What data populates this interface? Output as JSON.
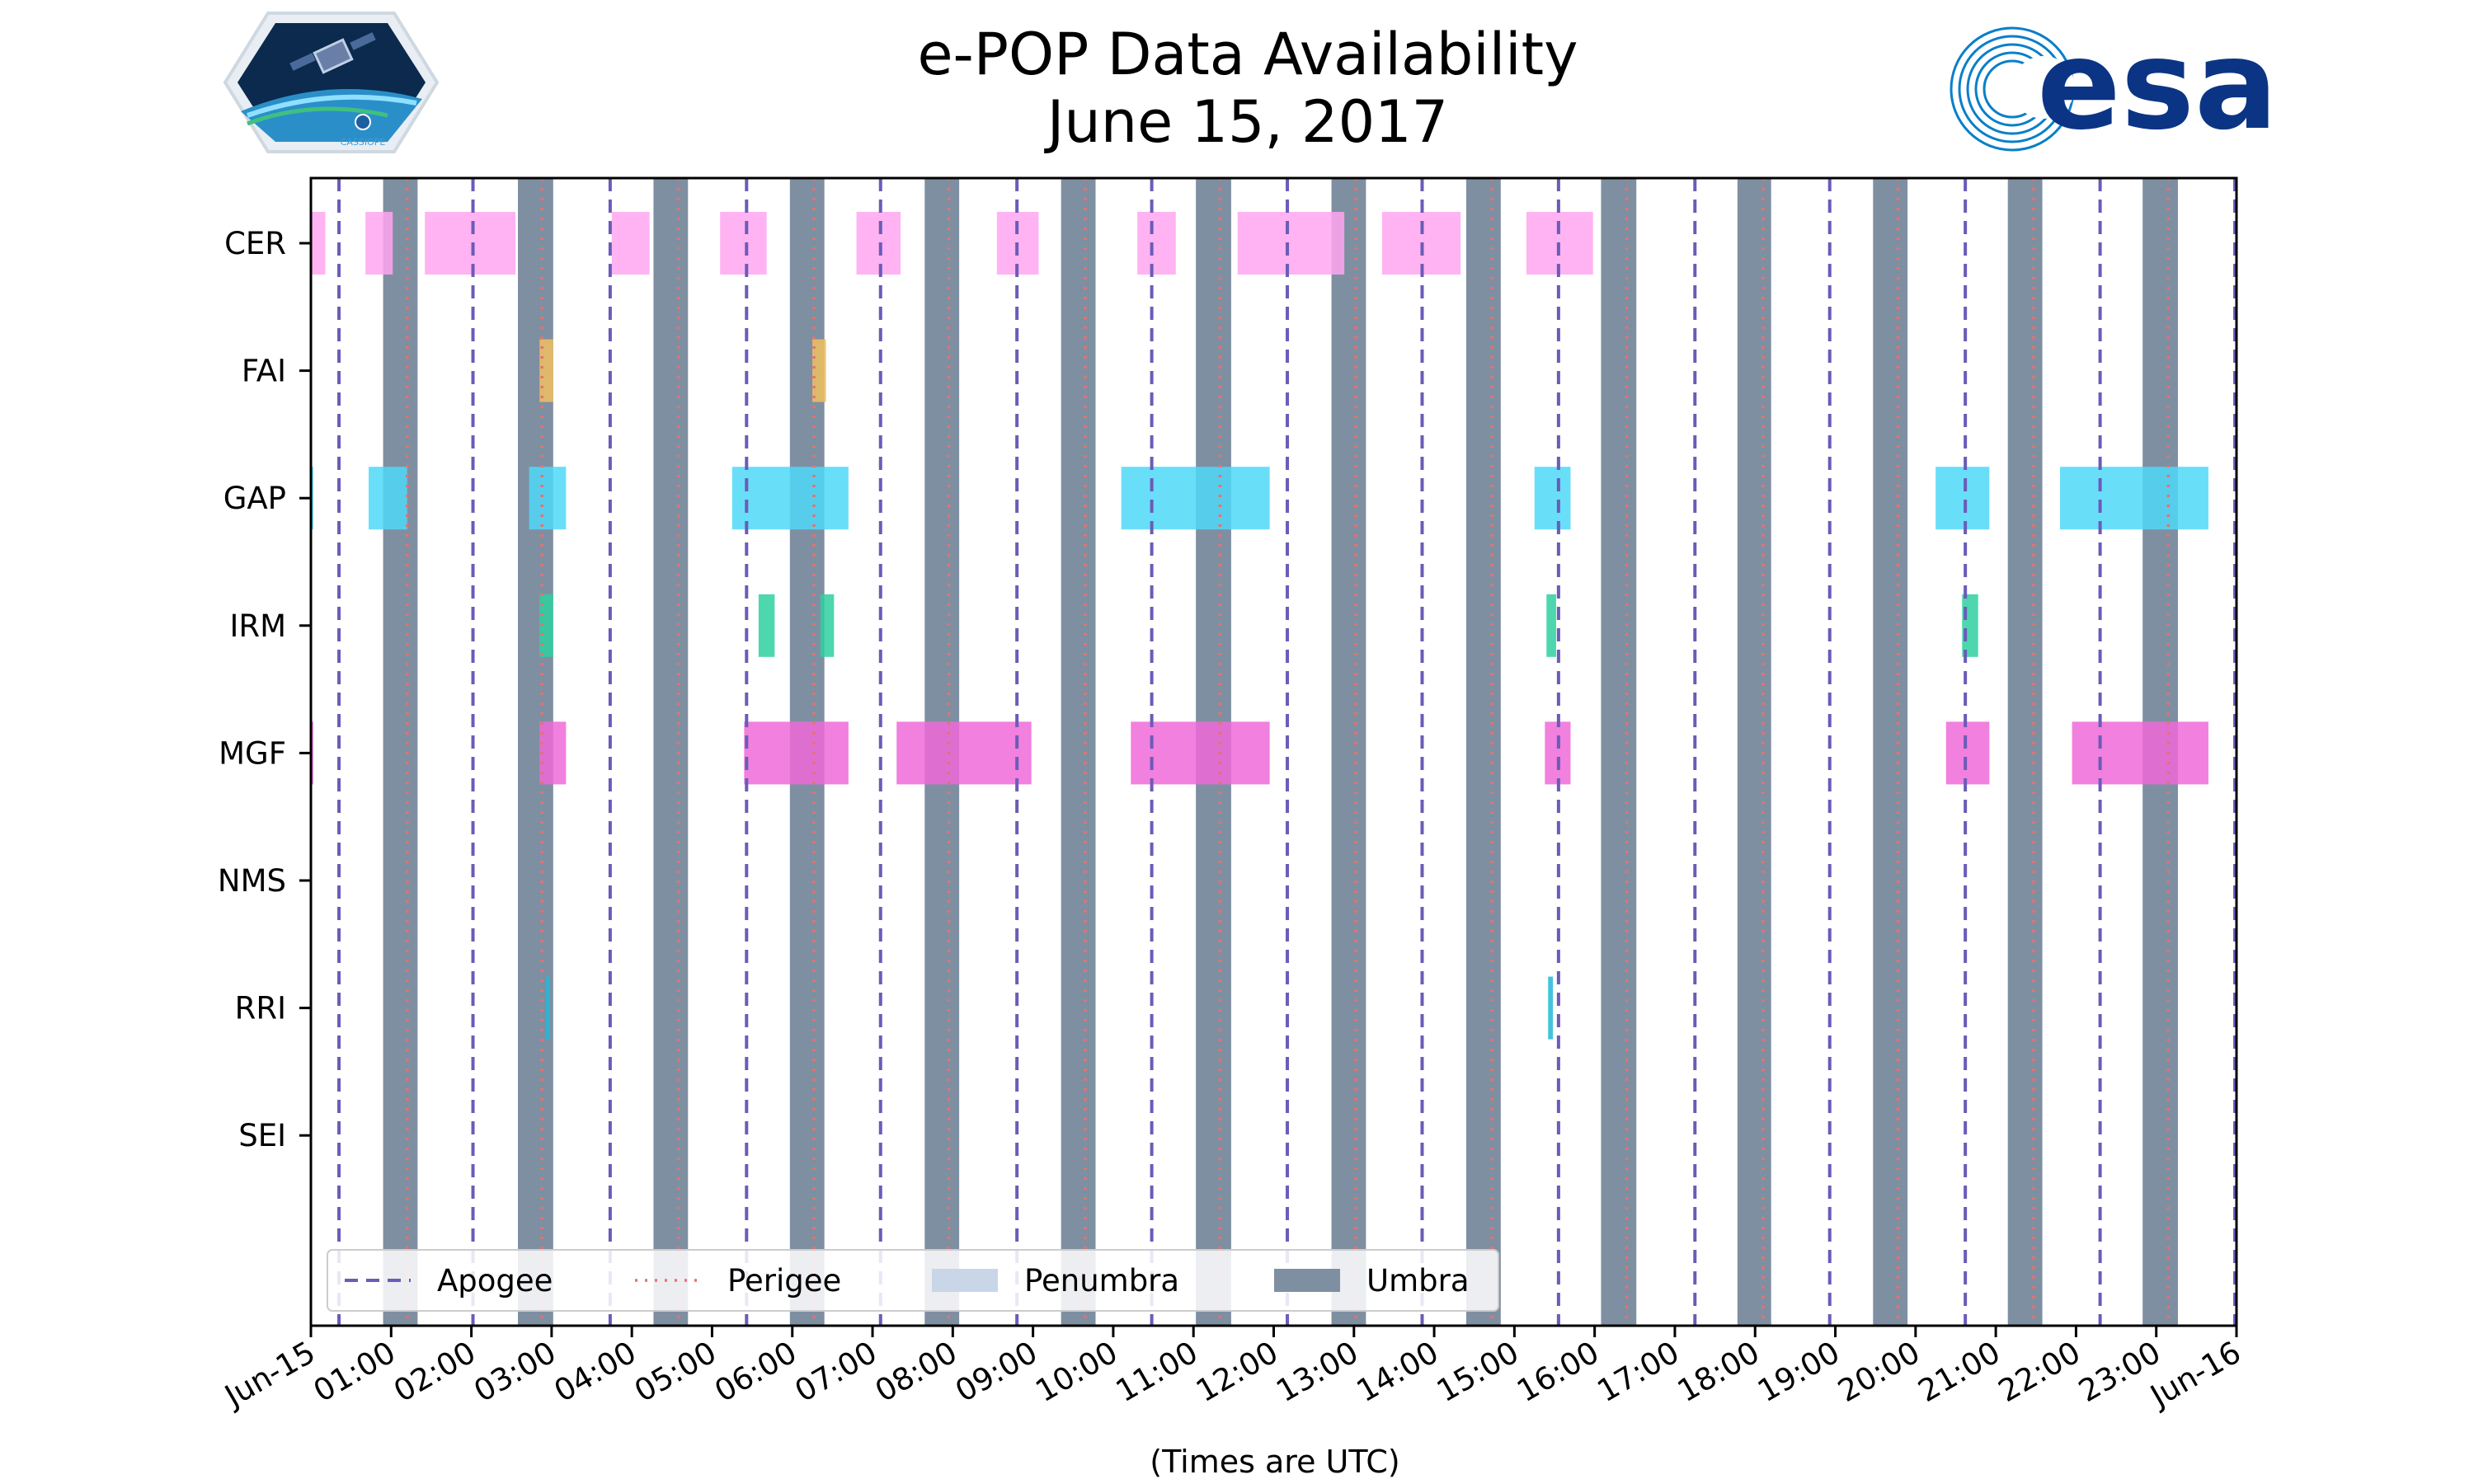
{
  "chart_data": {
    "type": "timeline",
    "title": "e-POP Data Availability",
    "subtitle": "June 15, 2017",
    "xlabel": "(Times are UTC)",
    "x_range_hours": [
      0,
      24
    ],
    "x_tick_labels": [
      "Jun-15",
      "01:00",
      "02:00",
      "03:00",
      "04:00",
      "05:00",
      "06:00",
      "07:00",
      "08:00",
      "09:00",
      "10:00",
      "11:00",
      "12:00",
      "13:00",
      "14:00",
      "15:00",
      "16:00",
      "17:00",
      "18:00",
      "19:00",
      "20:00",
      "21:00",
      "22:00",
      "23:00",
      "Jun-16"
    ],
    "instruments": [
      "CER",
      "FAI",
      "GAP",
      "IRM",
      "MGF",
      "NMS",
      "RRI",
      "SEI"
    ],
    "colors": {
      "CER": "#ffa6f0",
      "FAI": "#f0c060",
      "GAP": "#4fd8f8",
      "IRM": "#2fd0a0",
      "MGF": "#ee6ad8",
      "NMS": "#999999",
      "RRI": "#22b8d8",
      "SEI": "#999999",
      "apogee": "#6a5cb8",
      "perigee": "#e87070",
      "penumbra": "#c8d6e8",
      "umbra": "#7f8fa2"
    },
    "series": [
      {
        "name": "CER",
        "intervals_hours": [
          [
            0.0,
            0.18
          ],
          [
            0.68,
            1.02
          ],
          [
            1.42,
            2.55
          ],
          [
            3.75,
            4.22
          ],
          [
            5.1,
            5.68
          ],
          [
            6.8,
            7.35
          ],
          [
            8.55,
            9.07
          ],
          [
            10.3,
            10.78
          ],
          [
            11.55,
            12.88
          ],
          [
            13.35,
            14.33
          ],
          [
            15.15,
            15.98
          ]
        ]
      },
      {
        "name": "FAI",
        "intervals_hours": [
          [
            2.85,
            3.02
          ],
          [
            6.25,
            6.42
          ]
        ]
      },
      {
        "name": "GAP",
        "intervals_hours": [
          [
            0.0,
            0.03
          ],
          [
            0.72,
            1.2
          ],
          [
            2.72,
            3.18
          ],
          [
            5.25,
            6.7
          ],
          [
            10.1,
            11.95
          ],
          [
            15.25,
            15.7
          ],
          [
            20.25,
            20.92
          ],
          [
            21.8,
            23.65
          ]
        ]
      },
      {
        "name": "IRM",
        "intervals_hours": [
          [
            2.85,
            3.02
          ],
          [
            5.58,
            5.78
          ],
          [
            6.35,
            6.52
          ],
          [
            15.4,
            15.52
          ],
          [
            20.58,
            20.78
          ]
        ]
      },
      {
        "name": "MGF",
        "intervals_hours": [
          [
            0.0,
            0.03
          ],
          [
            2.85,
            3.18
          ],
          [
            5.4,
            6.7
          ],
          [
            7.3,
            8.98
          ],
          [
            10.22,
            11.95
          ],
          [
            15.38,
            15.7
          ],
          [
            20.38,
            20.92
          ],
          [
            21.95,
            23.65
          ]
        ]
      },
      {
        "name": "NMS",
        "intervals_hours": []
      },
      {
        "name": "RRI",
        "intervals_hours": [
          [
            2.92,
            2.98
          ],
          [
            15.42,
            15.48
          ]
        ]
      },
      {
        "name": "SEI",
        "intervals_hours": []
      }
    ],
    "umbra_hours": [
      [
        0.9,
        1.33
      ],
      [
        2.58,
        3.02
      ],
      [
        4.27,
        4.7
      ],
      [
        5.97,
        6.4
      ],
      [
        7.65,
        8.08
      ],
      [
        9.35,
        9.78
      ],
      [
        11.03,
        11.47
      ],
      [
        12.72,
        13.15
      ],
      [
        14.4,
        14.83
      ],
      [
        16.08,
        16.52
      ],
      [
        17.78,
        18.2
      ],
      [
        19.47,
        19.9
      ],
      [
        21.15,
        21.58
      ],
      [
        22.83,
        23.27
      ]
    ],
    "apogee_hours": [
      0.35,
      2.02,
      3.73,
      5.43,
      7.1,
      8.8,
      10.48,
      12.17,
      13.85,
      15.55,
      17.25,
      18.93,
      20.62,
      22.3,
      23.98
    ],
    "perigee_hours": [
      1.2,
      2.88,
      4.58,
      6.27,
      7.95,
      9.65,
      11.33,
      13.02,
      14.72,
      16.4,
      18.1,
      19.78,
      21.47,
      23.15
    ],
    "legend": {
      "position": "lower-left",
      "entries": [
        "Apogee",
        "Perigee",
        "Penumbra",
        "Umbra"
      ]
    }
  },
  "logos": {
    "left": "CASSIOPE",
    "right": "esa"
  }
}
